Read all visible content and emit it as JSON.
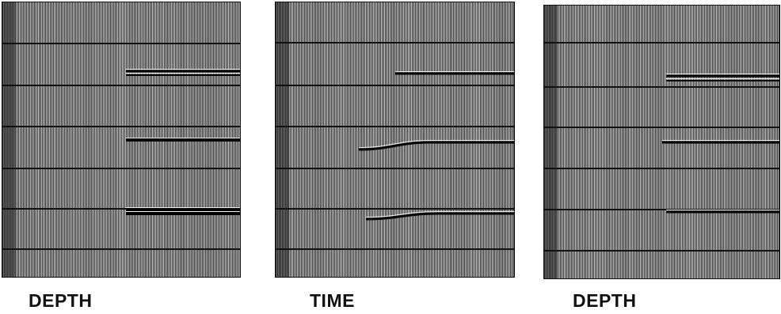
{
  "panels": [
    {
      "caption": "DEPTH",
      "horizontal_lines": [
        53,
        106,
        158,
        211,
        262,
        313
      ],
      "reflectors": [
        {
          "from": 0.52,
          "y1": 88,
          "y2": 88,
          "thickness": 3
        },
        {
          "from": 0.52,
          "y1": 93,
          "y2": 93,
          "thickness": 2
        },
        {
          "from": 0.52,
          "y1": 175,
          "y2": 175,
          "thickness": 4
        },
        {
          "from": 0.52,
          "y1": 263,
          "y2": 263,
          "thickness": 4
        },
        {
          "from": 0.52,
          "y1": 268,
          "y2": 268,
          "thickness": 4
        }
      ]
    },
    {
      "caption": "TIME",
      "horizontal_lines": [
        52,
        106,
        158,
        211,
        262,
        313
      ],
      "reflectors": [
        {
          "from": 0.5,
          "y1": 91,
          "y2": 91,
          "thickness": 3
        },
        {
          "from": 0.35,
          "y1": 187,
          "y2": 178,
          "thickness": 3
        },
        {
          "from": 0.38,
          "y1": 275,
          "y2": 268,
          "thickness": 3
        }
      ]
    },
    {
      "caption": "DEPTH",
      "horizontal_lines": [
        48,
        104,
        155,
        207,
        259,
        311
      ],
      "reflectors": [
        {
          "from": 0.52,
          "y1": 90,
          "y2": 90,
          "thickness": 3
        },
        {
          "from": 0.52,
          "y1": 96,
          "y2": 96,
          "thickness": 2
        },
        {
          "from": 0.5,
          "y1": 174,
          "y2": 174,
          "thickness": 3
        },
        {
          "from": 0.52,
          "y1": 262,
          "y2": 262,
          "thickness": 3
        }
      ]
    }
  ]
}
